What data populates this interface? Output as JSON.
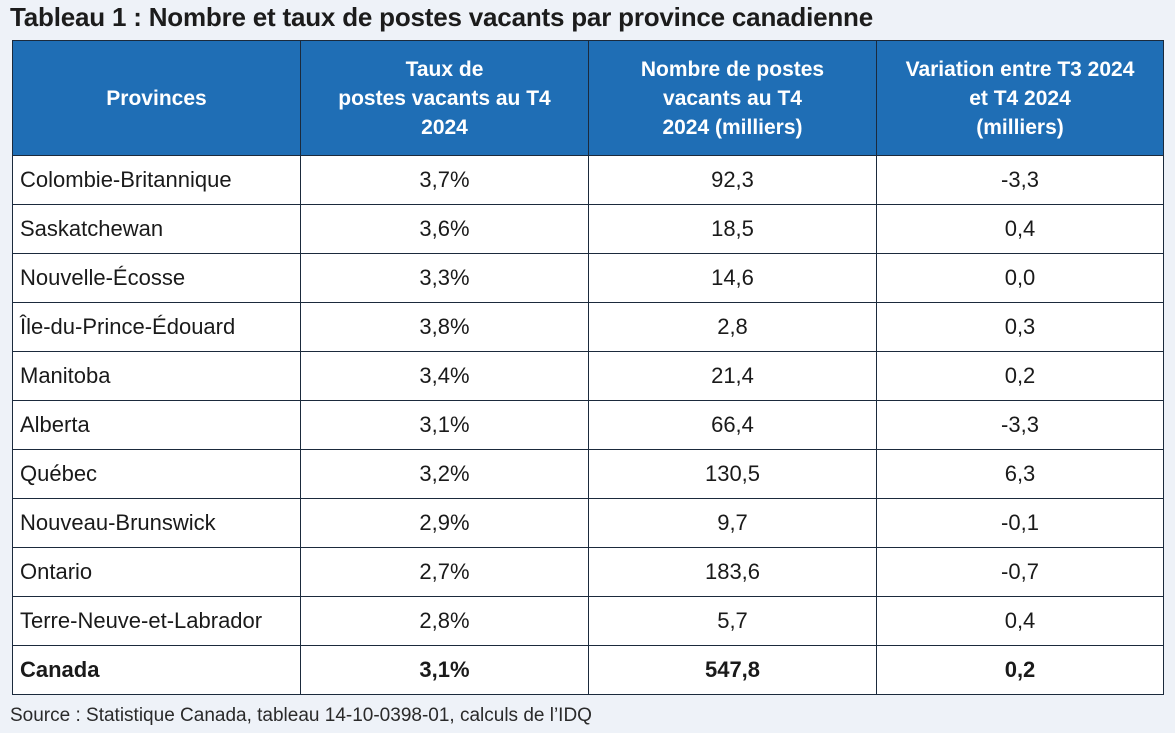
{
  "title": "Tableau 1 : Nombre et taux de postes vacants par province canadienne",
  "table": {
    "headers": [
      [
        "Provinces"
      ],
      [
        "Taux de",
        "postes vacants au T4",
        "2024"
      ],
      [
        "Nombre de postes",
        "vacants au T4",
        "2024 (milliers)"
      ],
      [
        "Variation entre T3 2024",
        "et T4 2024",
        "(milliers)"
      ]
    ],
    "rows": [
      [
        "Colombie-Britannique",
        "3,7%",
        "92,3",
        "-3,3"
      ],
      [
        "Saskatchewan",
        "3,6%",
        "18,5",
        "0,4"
      ],
      [
        "Nouvelle-Écosse",
        "3,3%",
        "14,6",
        "0,0"
      ],
      [
        "Île-du-Prince-Édouard",
        "3,8%",
        "2,8",
        "0,3"
      ],
      [
        "Manitoba",
        "3,4%",
        "21,4",
        "0,2"
      ],
      [
        "Alberta",
        "3,1%",
        "66,4",
        "-3,3"
      ],
      [
        "Québec",
        "3,2%",
        "130,5",
        "6,3"
      ],
      [
        "Nouveau-Brunswick",
        "2,9%",
        "9,7",
        "-0,1"
      ],
      [
        "Ontario",
        "2,7%",
        "183,6",
        "-0,7"
      ],
      [
        "Terre-Neuve-et-Labrador",
        "2,8%",
        "5,7",
        "0,4"
      ]
    ],
    "total": [
      "Canada",
      "3,1%",
      "547,8",
      "0,2"
    ]
  },
  "source": "Source : Statistique Canada, tableau 14-10-0398-01, calculs de l’IDQ",
  "colors": {
    "header_bg": "#1f6eb5",
    "header_text": "#ffffff",
    "page_bg": "#eef2f8",
    "border": "#1b2a3c"
  }
}
